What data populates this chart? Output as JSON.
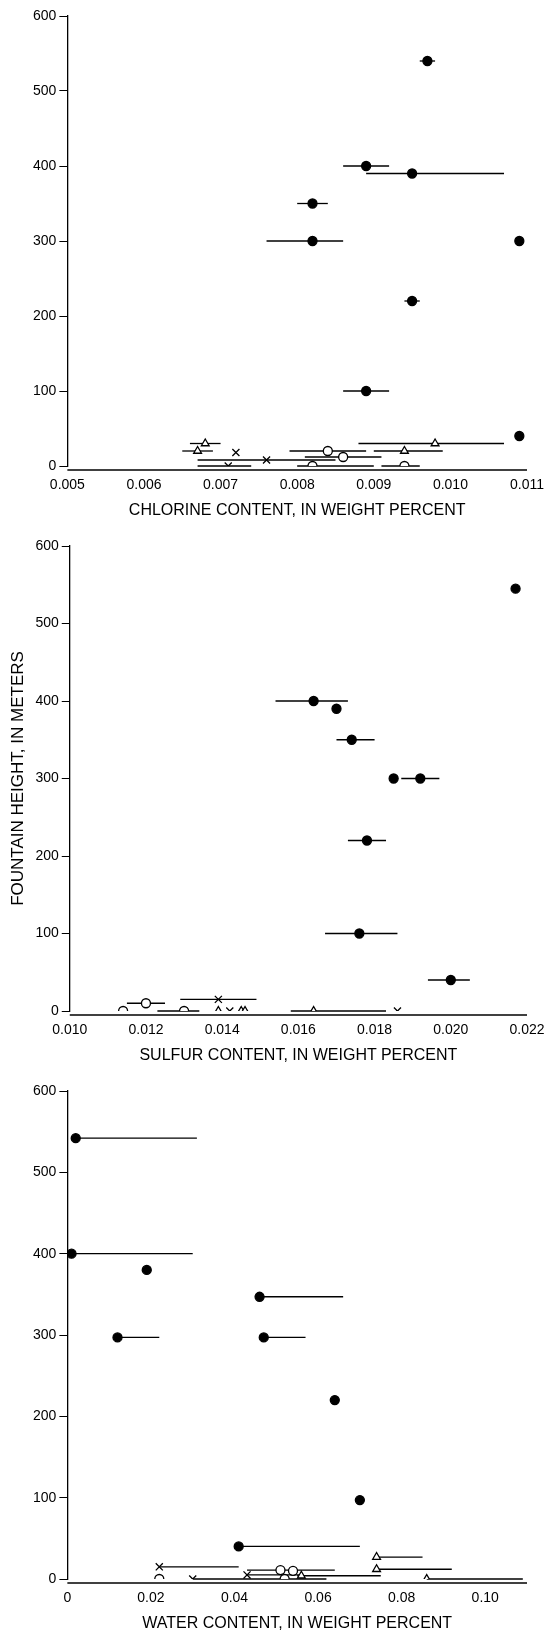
{
  "chart_data": [
    {
      "type": "scatter",
      "xlabel": "CHLORINE CONTENT, IN WEIGHT PERCENT",
      "xlim": [
        0.005,
        0.011
      ],
      "xticks": [
        0.005,
        0.006,
        0.007,
        0.008,
        0.009,
        {
          "value": 0.01,
          "label": "0.010"
        },
        0.011
      ],
      "ylim": [
        0,
        600
      ],
      "yticks": [
        0,
        100,
        200,
        300,
        400,
        500,
        600
      ],
      "grid": false,
      "legend": false,
      "series": [
        {
          "color": "#000000",
          "marker": "circle",
          "x": [
            0.0097,
            0.0089,
            0.0095,
            0.0082,
            0.0082,
            0.0109,
            0.0095,
            0.0089,
            0.0109
          ],
          "values": [
            540,
            400,
            390,
            350,
            300,
            300,
            220,
            100,
            40
          ],
          "xerrors": [
            0.0001,
            0.0003,
            [
              0.0089,
              0.0107
            ],
            [
              0.008,
              0.0084
            ],
            [
              0.0076,
              0.0086
            ],
            null,
            0.0001,
            0.0003,
            null
          ]
        },
        {
          "color": "#ffffff",
          "marker": "circle",
          "x": [
            0.0084,
            0.0086,
            0.0082,
            0.0094
          ],
          "values": [
            20,
            12,
            0,
            0
          ],
          "xerrors": [
            [
              0.0079,
              0.0089
            ],
            [
              0.0081,
              0.0091
            ],
            [
              0.008,
              0.009
            ],
            [
              0.0091,
              0.0096
            ]
          ]
        },
        {
          "color": "#ffffff",
          "marker": "triangle",
          "x": [
            0.0068,
            0.0067,
            0.0098,
            0.0094
          ],
          "values": [
            30,
            20,
            30,
            20
          ],
          "xerrors": [
            0.0002,
            [
              0.0065,
              0.0069
            ],
            [
              0.0088,
              0.0107
            ],
            [
              0.009,
              0.0099
            ]
          ]
        },
        {
          "color": "#000000",
          "marker": "cross",
          "x": [
            0.0072,
            0.0076,
            0.0071
          ],
          "values": [
            18,
            8,
            0
          ],
          "xerrors": [
            null,
            [
              0.0067,
              0.0085
            ],
            [
              0.0067,
              0.0074
            ]
          ]
        }
      ]
    },
    {
      "type": "scatter",
      "xlabel": "SULFUR CONTENT, IN WEIGHT PERCENT",
      "ylabel": "FOUNTAIN HEIGHT, IN METERS",
      "xlim": [
        0.01,
        0.022
      ],
      "xticks": [
        {
          "value": 0.01,
          "label": "0.010"
        },
        {
          "value": 0.012,
          "label": "0.012"
        },
        {
          "value": 0.014,
          "label": "0.014"
        },
        {
          "value": 0.016,
          "label": "0.016"
        },
        {
          "value": 0.018,
          "label": "0.018"
        },
        {
          "value": 0.02,
          "label": "0.020"
        },
        {
          "value": 0.022,
          "label": "0.022"
        }
      ],
      "ylim": [
        0,
        600
      ],
      "yticks": [
        0,
        100,
        200,
        300,
        400,
        500,
        600
      ],
      "grid": false,
      "legend": false,
      "series": [
        {
          "color": "#000000",
          "marker": "circle",
          "x": [
            0.0217,
            0.0164,
            0.017,
            0.0174,
            0.0185,
            0.0192,
            0.0178,
            0.0176,
            0.02
          ],
          "values": [
            545,
            400,
            390,
            350,
            300,
            300,
            220,
            100,
            40
          ],
          "xerrors": [
            null,
            [
              0.0154,
              0.0173
            ],
            null,
            [
              0.017,
              0.018
            ],
            null,
            [
              0.0187,
              0.0197
            ],
            [
              0.0173,
              0.0183
            ],
            [
              0.0167,
              0.0186
            ],
            [
              0.0194,
              0.0205
            ]
          ]
        },
        {
          "color": "#ffffff",
          "marker": "circle",
          "x": [
            0.0114,
            0.012,
            0.013
          ],
          "values": [
            0,
            10,
            0
          ],
          "xerrors": [
            null,
            [
              0.0115,
              0.0125
            ],
            [
              0.0123,
              0.0134
            ]
          ]
        },
        {
          "color": "#ffffff",
          "marker": "triangle",
          "x": [
            0.0139,
            0.0145,
            0.0146,
            0.0164
          ],
          "values": [
            0,
            0,
            0,
            0
          ],
          "xerrors": [
            null,
            null,
            null,
            [
              0.0158,
              0.0183
            ]
          ]
        },
        {
          "color": "#000000",
          "marker": "cross",
          "x": [
            0.0139,
            0.0142,
            0.0186
          ],
          "values": [
            15,
            0,
            0
          ],
          "xerrors": [
            [
              0.0129,
              0.0149
            ],
            null,
            null
          ]
        }
      ]
    },
    {
      "type": "scatter",
      "xlabel": "WATER CONTENT, IN WEIGHT PERCENT",
      "xlim": [
        0,
        0.11
      ],
      "xticks": [
        0,
        0.02,
        0.04,
        0.06,
        0.08,
        {
          "value": 0.1,
          "label": "0.10"
        }
      ],
      "ylim": [
        0,
        600
      ],
      "yticks": [
        0,
        100,
        200,
        300,
        400,
        500,
        600
      ],
      "grid": false,
      "legend": false,
      "series": [
        {
          "color": "#000000",
          "marker": "circle",
          "x": [
            0.002,
            0.001,
            0.019,
            0.046,
            0.012,
            0.047,
            0.064,
            0.07,
            0.041
          ],
          "values": [
            542,
            400,
            380,
            347,
            297,
            297,
            220,
            97,
            40
          ],
          "xerrors": [
            [
              0.002,
              0.031
            ],
            [
              0.001,
              0.03
            ],
            null,
            [
              0.046,
              0.066
            ],
            [
              0.012,
              0.022
            ],
            [
              0.047,
              0.057
            ],
            null,
            null,
            [
              0.041,
              0.07
            ]
          ]
        },
        {
          "color": "#ffffff",
          "marker": "circle",
          "x": [
            0.022,
            0.051,
            0.054,
            0.052
          ],
          "values": [
            0,
            11,
            10,
            0
          ],
          "xerrors": [
            null,
            [
              0.043,
              0.064
            ],
            null,
            null
          ]
        },
        {
          "color": "#ffffff",
          "marker": "triangle",
          "x": [
            0.074,
            0.074,
            0.056,
            0.086
          ],
          "values": [
            27,
            12,
            4,
            0
          ],
          "xerrors": [
            [
              0.074,
              0.085
            ],
            [
              0.074,
              0.092
            ],
            [
              0.055,
              0.075
            ],
            [
              0.086,
              0.109
            ]
          ]
        },
        {
          "color": "#000000",
          "marker": "cross",
          "x": [
            0.022,
            0.03,
            0.043
          ],
          "values": [
            15,
            0,
            5
          ],
          "xerrors": [
            [
              0.022,
              0.041
            ],
            [
              0.03,
              0.062
            ],
            [
              0.043,
              0.056
            ]
          ]
        }
      ]
    }
  ]
}
